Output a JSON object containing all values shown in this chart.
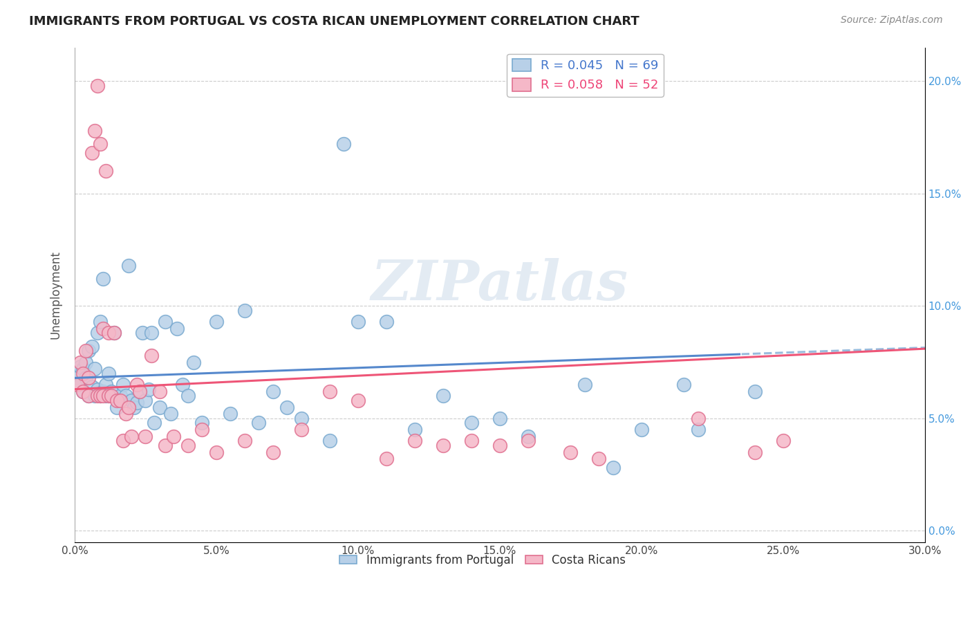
{
  "title": "IMMIGRANTS FROM PORTUGAL VS COSTA RICAN UNEMPLOYMENT CORRELATION CHART",
  "source": "Source: ZipAtlas.com",
  "ylabel_label": "Unemployment",
  "x_ticks": [
    0.0,
    0.05,
    0.1,
    0.15,
    0.2,
    0.25,
    0.3
  ],
  "y_ticks": [
    0.0,
    0.05,
    0.1,
    0.15,
    0.2
  ],
  "xlim": [
    0.0,
    0.3
  ],
  "ylim": [
    -0.005,
    0.215
  ],
  "legend_r_blue": "0.045",
  "legend_n_blue": "69",
  "legend_r_pink": "0.058",
  "legend_n_pink": "52",
  "blue_color": "#b8d0e8",
  "pink_color": "#f5b8c8",
  "blue_edge": "#7aaad0",
  "pink_edge": "#e07090",
  "trend_blue_solid": "#5588cc",
  "trend_blue_dash": "#99bbdd",
  "trend_pink": "#ee5577",
  "watermark_text": "ZIPatlas",
  "blue_x": [
    0.001,
    0.002,
    0.002,
    0.003,
    0.003,
    0.004,
    0.004,
    0.005,
    0.005,
    0.006,
    0.006,
    0.007,
    0.007,
    0.008,
    0.008,
    0.009,
    0.009,
    0.01,
    0.01,
    0.011,
    0.011,
    0.012,
    0.012,
    0.013,
    0.014,
    0.015,
    0.016,
    0.017,
    0.018,
    0.019,
    0.02,
    0.021,
    0.022,
    0.023,
    0.024,
    0.025,
    0.026,
    0.027,
    0.028,
    0.03,
    0.032,
    0.034,
    0.036,
    0.038,
    0.04,
    0.042,
    0.045,
    0.05,
    0.055,
    0.06,
    0.065,
    0.07,
    0.075,
    0.08,
    0.09,
    0.095,
    0.1,
    0.11,
    0.12,
    0.13,
    0.14,
    0.15,
    0.16,
    0.18,
    0.19,
    0.2,
    0.215,
    0.22,
    0.24
  ],
  "blue_y": [
    0.068,
    0.073,
    0.065,
    0.072,
    0.062,
    0.075,
    0.068,
    0.08,
    0.06,
    0.082,
    0.064,
    0.072,
    0.06,
    0.088,
    0.063,
    0.093,
    0.06,
    0.112,
    0.062,
    0.065,
    0.06,
    0.07,
    0.06,
    0.062,
    0.088,
    0.055,
    0.06,
    0.065,
    0.06,
    0.118,
    0.058,
    0.055,
    0.057,
    0.062,
    0.088,
    0.058,
    0.063,
    0.088,
    0.048,
    0.055,
    0.093,
    0.052,
    0.09,
    0.065,
    0.06,
    0.075,
    0.048,
    0.093,
    0.052,
    0.098,
    0.048,
    0.062,
    0.055,
    0.05,
    0.04,
    0.172,
    0.093,
    0.093,
    0.045,
    0.06,
    0.048,
    0.05,
    0.042,
    0.065,
    0.028,
    0.045,
    0.065,
    0.045,
    0.062
  ],
  "pink_x": [
    0.001,
    0.002,
    0.003,
    0.003,
    0.004,
    0.005,
    0.005,
    0.006,
    0.007,
    0.008,
    0.008,
    0.009,
    0.009,
    0.01,
    0.01,
    0.011,
    0.012,
    0.012,
    0.013,
    0.014,
    0.015,
    0.016,
    0.017,
    0.018,
    0.019,
    0.02,
    0.022,
    0.023,
    0.025,
    0.027,
    0.03,
    0.032,
    0.035,
    0.04,
    0.045,
    0.05,
    0.06,
    0.07,
    0.08,
    0.09,
    0.1,
    0.11,
    0.12,
    0.13,
    0.14,
    0.15,
    0.16,
    0.175,
    0.185,
    0.22,
    0.24,
    0.25
  ],
  "pink_y": [
    0.065,
    0.075,
    0.07,
    0.062,
    0.08,
    0.068,
    0.06,
    0.168,
    0.178,
    0.198,
    0.06,
    0.172,
    0.06,
    0.09,
    0.06,
    0.16,
    0.088,
    0.06,
    0.06,
    0.088,
    0.058,
    0.058,
    0.04,
    0.052,
    0.055,
    0.042,
    0.065,
    0.062,
    0.042,
    0.078,
    0.062,
    0.038,
    0.042,
    0.038,
    0.045,
    0.035,
    0.04,
    0.035,
    0.045,
    0.062,
    0.058,
    0.032,
    0.04,
    0.038,
    0.04,
    0.038,
    0.04,
    0.035,
    0.032,
    0.05,
    0.035,
    0.04
  ]
}
